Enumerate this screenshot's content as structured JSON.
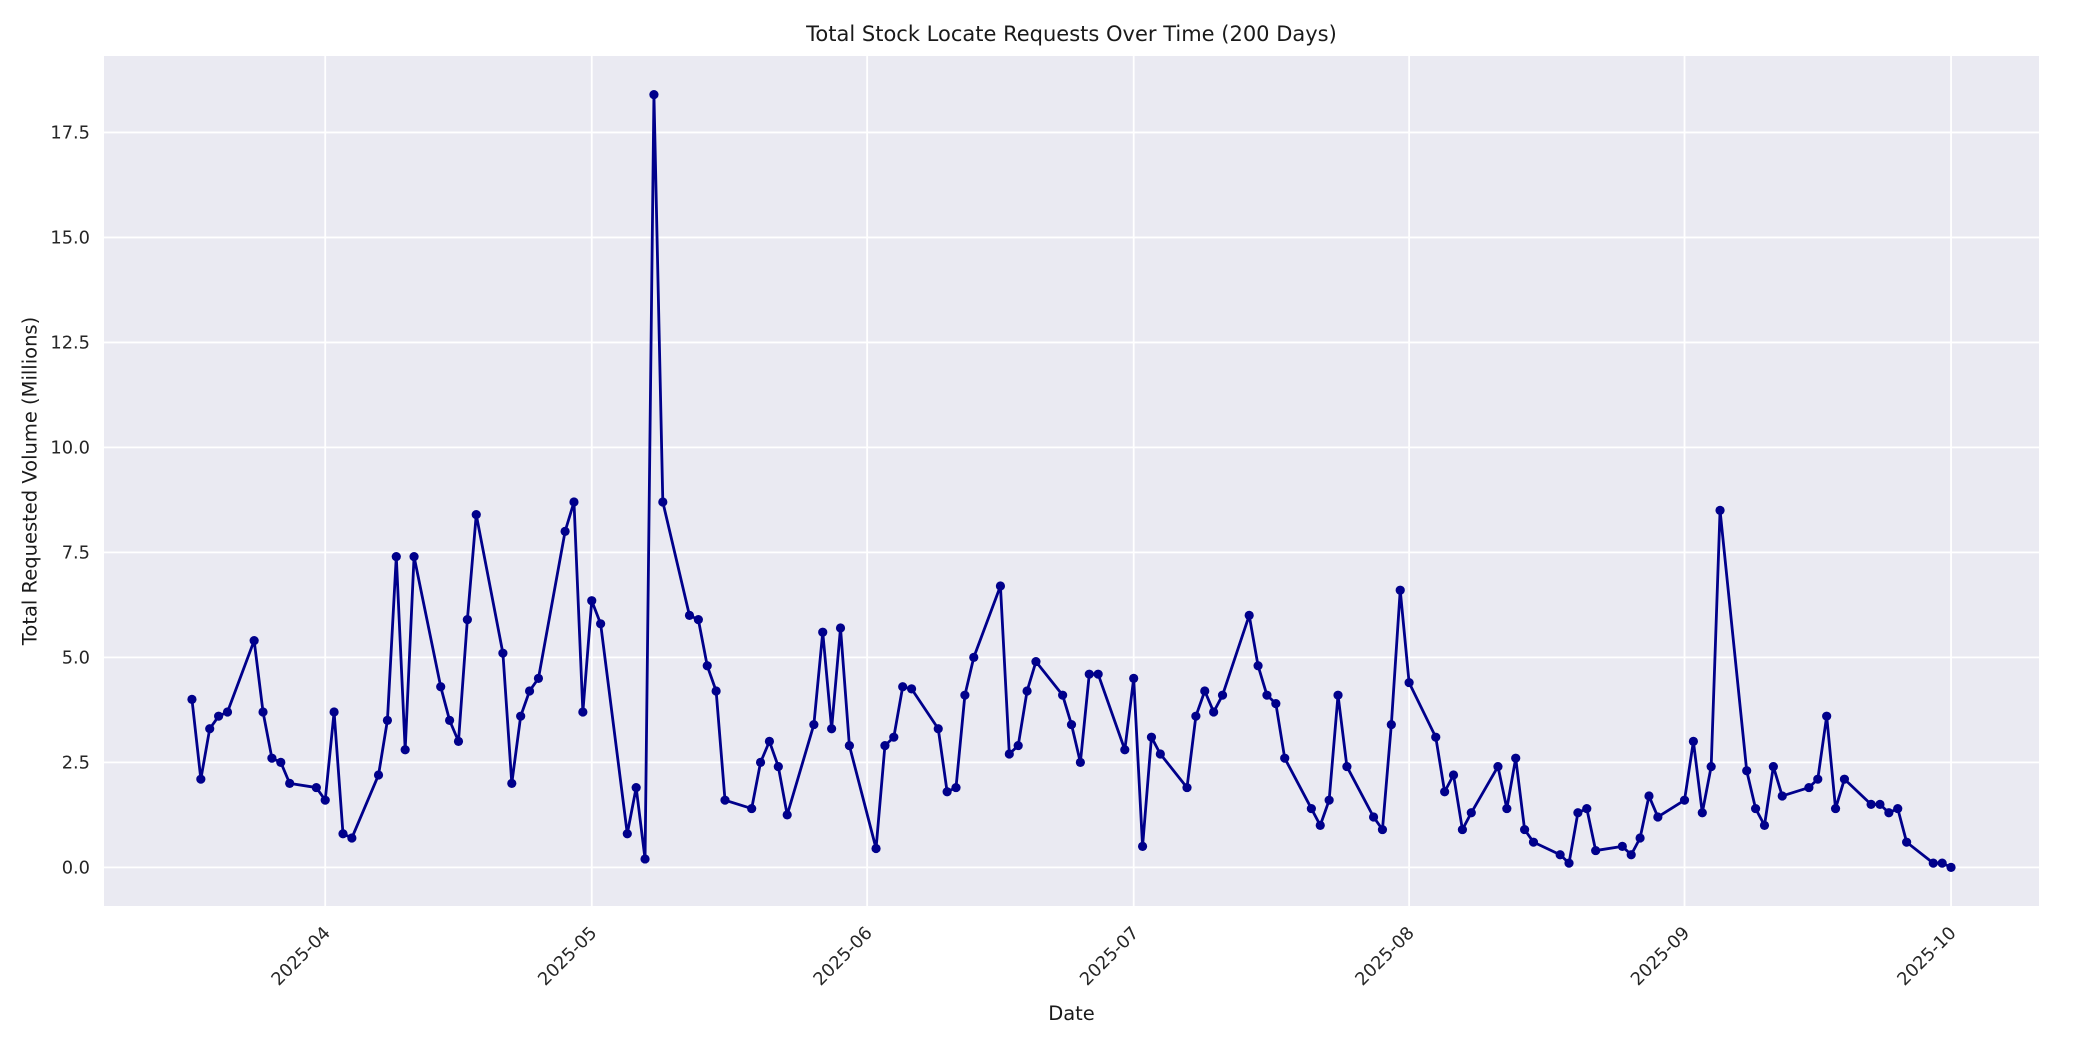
{
  "chart_data": {
    "type": "line",
    "title": "Total Stock Locate Requests Over Time (200 Days)",
    "xlabel": "Date",
    "ylabel": "Total Requested Volume (Millions)",
    "grid": true,
    "legend": false,
    "plot_bg": "#EAEAF2",
    "grid_color": "#FFFFFF",
    "line_color": "#00008B",
    "tick_color": "#262626",
    "marker": "circle",
    "ylim": [
      -0.92,
      19.32
    ],
    "yticks": [
      "0.0",
      "2.5",
      "5.0",
      "7.5",
      "10.0",
      "12.5",
      "15.0",
      "17.5"
    ],
    "ytick_values": [
      0,
      2.5,
      5,
      7.5,
      10,
      12.5,
      15,
      17.5
    ],
    "xticks": [
      {
        "date": "2025-04-01",
        "label": "2025-04"
      },
      {
        "date": "2025-05-01",
        "label": "2025-05"
      },
      {
        "date": "2025-06-01",
        "label": "2025-06"
      },
      {
        "date": "2025-07-01",
        "label": "2025-07"
      },
      {
        "date": "2025-08-01",
        "label": "2025-08"
      },
      {
        "date": "2025-09-01",
        "label": "2025-09"
      },
      {
        "date": "2025-10-01",
        "label": "2025-10"
      }
    ],
    "x": [
      "2025-03-17",
      "2025-03-18",
      "2025-03-19",
      "2025-03-20",
      "2025-03-21",
      "2025-03-24",
      "2025-03-25",
      "2025-03-26",
      "2025-03-27",
      "2025-03-28",
      "2025-03-31",
      "2025-04-01",
      "2025-04-02",
      "2025-04-03",
      "2025-04-04",
      "2025-04-07",
      "2025-04-08",
      "2025-04-09",
      "2025-04-10",
      "2025-04-11",
      "2025-04-14",
      "2025-04-15",
      "2025-04-16",
      "2025-04-17",
      "2025-04-18",
      "2025-04-21",
      "2025-04-22",
      "2025-04-23",
      "2025-04-24",
      "2025-04-25",
      "2025-04-28",
      "2025-04-29",
      "2025-04-30",
      "2025-05-01",
      "2025-05-02",
      "2025-05-05",
      "2025-05-06",
      "2025-05-07",
      "2025-05-08",
      "2025-05-09",
      "2025-05-12",
      "2025-05-13",
      "2025-05-14",
      "2025-05-15",
      "2025-05-16",
      "2025-05-19",
      "2025-05-20",
      "2025-05-21",
      "2025-05-22",
      "2025-05-23",
      "2025-05-26",
      "2025-05-27",
      "2025-05-28",
      "2025-05-29",
      "2025-05-30",
      "2025-06-02",
      "2025-06-03",
      "2025-06-04",
      "2025-06-05",
      "2025-06-06",
      "2025-06-09",
      "2025-06-10",
      "2025-06-11",
      "2025-06-12",
      "2025-06-13",
      "2025-06-16",
      "2025-06-17",
      "2025-06-18",
      "2025-06-19",
      "2025-06-20",
      "2025-06-23",
      "2025-06-24",
      "2025-06-25",
      "2025-06-26",
      "2025-06-27",
      "2025-06-30",
      "2025-07-01",
      "2025-07-02",
      "2025-07-03",
      "2025-07-04",
      "2025-07-07",
      "2025-07-08",
      "2025-07-09",
      "2025-07-10",
      "2025-07-11",
      "2025-07-14",
      "2025-07-15",
      "2025-07-16",
      "2025-07-17",
      "2025-07-18",
      "2025-07-21",
      "2025-07-22",
      "2025-07-23",
      "2025-07-24",
      "2025-07-25",
      "2025-07-28",
      "2025-07-29",
      "2025-07-30",
      "2025-07-31",
      "2025-08-01",
      "2025-08-04",
      "2025-08-05",
      "2025-08-06",
      "2025-08-07",
      "2025-08-08",
      "2025-08-11",
      "2025-08-12",
      "2025-08-13",
      "2025-08-14",
      "2025-08-15",
      "2025-08-18",
      "2025-08-19",
      "2025-08-20",
      "2025-08-21",
      "2025-08-22",
      "2025-08-25",
      "2025-08-26",
      "2025-08-27",
      "2025-08-28",
      "2025-08-29",
      "2025-09-01",
      "2025-09-02",
      "2025-09-03",
      "2025-09-04",
      "2025-09-05",
      "2025-09-08",
      "2025-09-09",
      "2025-09-10",
      "2025-09-11",
      "2025-09-12",
      "2025-09-15",
      "2025-09-16",
      "2025-09-17",
      "2025-09-18",
      "2025-09-19",
      "2025-09-22",
      "2025-09-23",
      "2025-09-24",
      "2025-09-25",
      "2025-09-26",
      "2025-09-29",
      "2025-09-30",
      "2025-10-01"
    ],
    "values": [
      4.0,
      2.1,
      3.3,
      3.6,
      3.7,
      5.4,
      3.7,
      2.6,
      2.5,
      2.0,
      1.9,
      1.6,
      3.7,
      0.8,
      0.7,
      2.2,
      3.5,
      7.4,
      2.8,
      7.4,
      4.3,
      3.5,
      3.0,
      5.9,
      8.4,
      5.1,
      2.0,
      3.6,
      4.2,
      4.5,
      8.0,
      8.7,
      3.7,
      6.35,
      5.8,
      0.8,
      1.9,
      0.2,
      18.4,
      8.7,
      6.0,
      5.9,
      4.8,
      4.2,
      1.6,
      1.4,
      2.5,
      3.0,
      2.4,
      1.25,
      3.4,
      5.6,
      3.3,
      5.7,
      2.9,
      0.45,
      2.9,
      3.1,
      4.3,
      4.25,
      3.3,
      1.8,
      1.9,
      4.1,
      5.0,
      6.7,
      2.7,
      2.9,
      4.2,
      4.9,
      4.1,
      3.4,
      2.5,
      4.6,
      4.6,
      2.8,
      4.5,
      0.5,
      3.1,
      2.7,
      1.9,
      3.6,
      4.2,
      3.7,
      4.1,
      6.0,
      4.8,
      4.1,
      3.9,
      2.6,
      1.4,
      1.0,
      1.6,
      4.1,
      2.4,
      1.2,
      0.9,
      3.4,
      6.6,
      4.4,
      3.1,
      1.8,
      2.2,
      0.9,
      1.3,
      2.4,
      1.4,
      2.6,
      0.9,
      0.6,
      0.3,
      0.1,
      1.3,
      1.4,
      0.4,
      0.5,
      0.3,
      0.7,
      1.7,
      1.2,
      1.6,
      3.0,
      1.3,
      2.4,
      8.5,
      2.3,
      1.4,
      1.0,
      2.4,
      1.7,
      1.9,
      2.1,
      3.6,
      1.4,
      2.1,
      1.5,
      1.5,
      1.3,
      1.4,
      0.6,
      0.1,
      0.1,
      0.0
    ]
  }
}
